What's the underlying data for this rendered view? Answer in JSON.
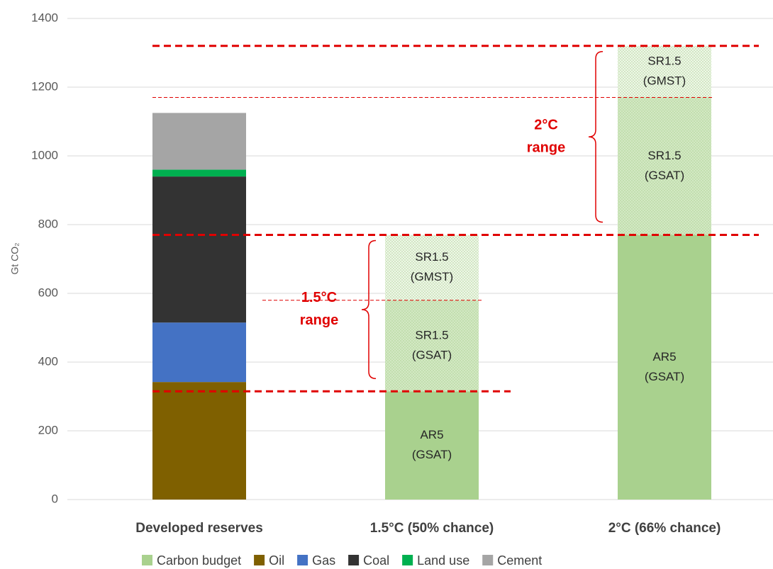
{
  "chart_data": {
    "type": "stacked_bar",
    "ylabel": "Gt CO₂",
    "categories": [
      "Developed reserves",
      "1.5°C (50% chance)",
      "2°C (66% chance)"
    ],
    "ylim": [
      0,
      1400
    ],
    "yticks": [
      0,
      200,
      400,
      600,
      800,
      1000,
      1200,
      1400
    ],
    "grid": true,
    "legend": "bottom",
    "series": [
      {
        "name": "Carbon budget",
        "color": "#a9d18e",
        "values": [
          null,
          315,
          770
        ],
        "labels": [
          null,
          [
            "AR5",
            "(GSAT)"
          ],
          [
            "AR5",
            "(GSAT)"
          ]
        ]
      },
      {
        "color": "#d3e8c4",
        "pattern": "dots",
        "values": [
          null,
          265,
          400
        ],
        "labels": [
          null,
          [
            "SR1.5",
            "(GSAT)"
          ],
          [
            "SR1.5",
            "(GSAT)"
          ]
        ]
      },
      {
        "color": "#eef6e8",
        "pattern": "dots",
        "values": [
          null,
          190,
          150
        ],
        "labels": [
          null,
          [
            "SR1.5",
            "(GMST)"
          ],
          [
            "SR1.5",
            "(GMST)"
          ]
        ]
      },
      {
        "name": "Oil",
        "color": "#7f6000",
        "values": [
          342,
          null,
          null
        ]
      },
      {
        "name": "Gas",
        "color": "#4472c4",
        "values": [
          173,
          null,
          null
        ]
      },
      {
        "name": "Coal",
        "color": "#333333",
        "values": [
          425,
          null,
          null
        ]
      },
      {
        "name": "Land use",
        "color": "#00b050",
        "values": [
          20,
          null,
          null
        ]
      },
      {
        "name": "Cement",
        "color": "#a5a5a5",
        "values": [
          165,
          null,
          null
        ]
      }
    ],
    "reference_lines": [
      {
        "value": 315,
        "style": "thick",
        "color": "#e00000"
      },
      {
        "value": 580,
        "style": "thin",
        "color": "#e00000"
      },
      {
        "value": 770,
        "style": "thick",
        "color": "#e00000"
      },
      {
        "value": 1170,
        "style": "thin",
        "color": "#e00000"
      },
      {
        "value": 1320,
        "style": "thick",
        "color": "#e00000"
      }
    ],
    "ranges": [
      {
        "label": [
          "1.5°C",
          "range"
        ],
        "from": 315,
        "to": 770
      },
      {
        "label": [
          "2°C",
          "range"
        ],
        "from": 770,
        "to": 1320
      }
    ]
  }
}
